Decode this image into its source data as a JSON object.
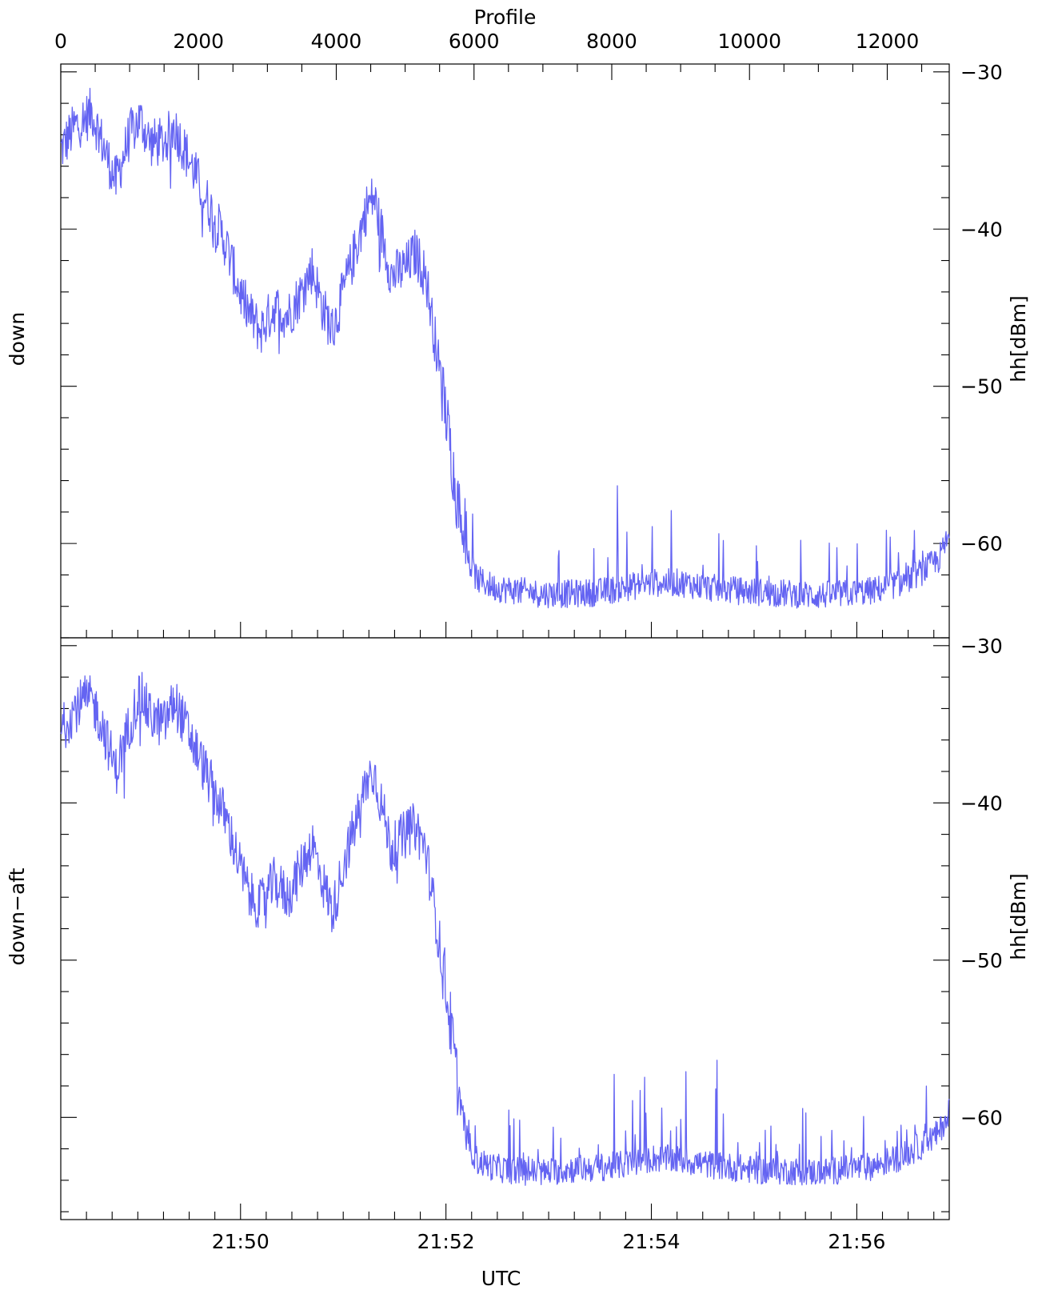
{
  "chart_data": [
    {
      "type": "line",
      "panel": "top",
      "left_label": "down",
      "ylabel": "hh[dBm]",
      "ylim": [
        -66,
        -29.5
      ],
      "yticks": [
        -30,
        -40,
        -50,
        -60
      ],
      "yticks_labels": [
        "−30",
        "−40",
        "−50",
        "−60"
      ],
      "top_axis": {
        "label": "Profile",
        "range": [
          0,
          12900
        ],
        "ticks": [
          0,
          2000,
          4000,
          6000,
          8000,
          10000,
          12000
        ],
        "tick_labels": [
          "0",
          "2000",
          "4000",
          "6000",
          "8000",
          "10000",
          "12000"
        ]
      },
      "color": "#6464f2",
      "series": [
        {
          "profile": [
            0,
            200,
            350,
            450,
            600,
            800,
            1000,
            1150,
            1300,
            1500,
            1650,
            1800,
            2000,
            2200,
            2400,
            2600,
            2750,
            2900,
            3100,
            3300,
            3500,
            3650,
            3800,
            3950,
            4100,
            4300,
            4450,
            4550,
            4650,
            4800,
            5000,
            5150,
            5300,
            5450,
            5600,
            5750,
            5900,
            6050,
            6300,
            6600,
            7000,
            7400,
            7800,
            8200,
            8600,
            9000,
            9400,
            9800,
            10200,
            10600,
            11000,
            11400,
            11800,
            12200,
            12500,
            12750,
            12900
          ],
          "values": [
            -35,
            -33.5,
            -33,
            -32.5,
            -34.5,
            -37,
            -34,
            -33,
            -34.5,
            -34.5,
            -33.5,
            -35,
            -37,
            -39,
            -41,
            -44,
            -45.5,
            -46.5,
            -45,
            -45.5,
            -44,
            -42.5,
            -45,
            -46.5,
            -44,
            -41,
            -38.5,
            -38,
            -40,
            -43,
            -42.5,
            -41.5,
            -43,
            -47.5,
            -52,
            -57,
            -61,
            -62.3,
            -62.8,
            -63,
            -63.2,
            -63.2,
            -63.1,
            -62.8,
            -62.5,
            -62.5,
            -62.8,
            -63.0,
            -63.1,
            -63.2,
            -63.3,
            -63.2,
            -63,
            -62.5,
            -61.8,
            -61,
            -59.5
          ]
        }
      ]
    },
    {
      "type": "line",
      "panel": "bottom",
      "left_label": "down−aft",
      "ylabel": "hh[dBm]",
      "ylim": [
        -66.5,
        -29.5
      ],
      "yticks": [
        -30,
        -40,
        -50,
        -60
      ],
      "yticks_labels": [
        "−30",
        "−40",
        "−50",
        "−60"
      ],
      "xlabel": "UTC",
      "x_axis": {
        "range_minutes": [
          1308.25,
          1316.9
        ],
        "ticks_minutes": [
          1310,
          1312,
          1314,
          1316
        ],
        "tick_labels": [
          "21:50",
          "21:52",
          "21:54",
          "21:56"
        ],
        "minor_step_minutes": 0.25
      },
      "color": "#6464f2",
      "series": [
        {
          "profile": [
            0,
            200,
            350,
            450,
            600,
            800,
            1000,
            1150,
            1300,
            1500,
            1650,
            1800,
            2000,
            2200,
            2400,
            2600,
            2750,
            2900,
            3100,
            3300,
            3500,
            3650,
            3800,
            3950,
            4100,
            4300,
            4450,
            4550,
            4650,
            4800,
            5000,
            5150,
            5300,
            5450,
            5600,
            5750,
            5900,
            6050,
            6300,
            6600,
            7000,
            7400,
            7800,
            8200,
            8600,
            9000,
            9400,
            9800,
            10200,
            10600,
            11000,
            11400,
            11800,
            12200,
            12500,
            12750,
            12900
          ],
          "values": [
            -35.5,
            -34,
            -33.5,
            -33.5,
            -35,
            -38,
            -35,
            -33,
            -34.5,
            -35,
            -33.5,
            -35,
            -37,
            -39,
            -41,
            -44,
            -46,
            -46.5,
            -45,
            -46,
            -44,
            -42.5,
            -45,
            -47,
            -44,
            -41,
            -38.5,
            -38,
            -40,
            -43,
            -42,
            -41.5,
            -43,
            -47.5,
            -52,
            -57.5,
            -61.5,
            -62.8,
            -63.2,
            -63.4,
            -63.5,
            -63.3,
            -63.2,
            -63.0,
            -62.6,
            -62.7,
            -63.0,
            -63.2,
            -63.4,
            -63.4,
            -63.5,
            -63.3,
            -63.1,
            -62.5,
            -61.8,
            -61,
            -59.5
          ]
        }
      ]
    }
  ]
}
